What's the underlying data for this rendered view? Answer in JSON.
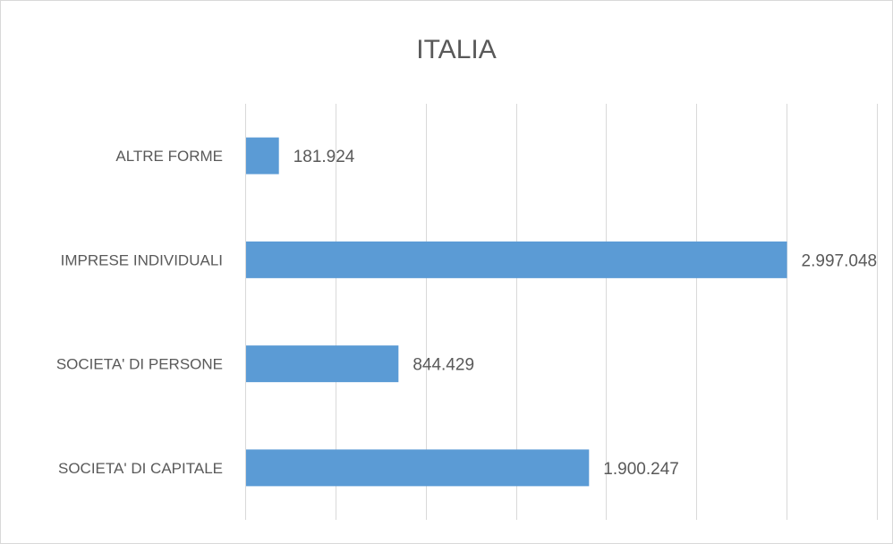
{
  "chart_data": {
    "type": "bar",
    "orientation": "horizontal",
    "title": "ITALIA",
    "xlabel": "",
    "ylabel": "",
    "categories": [
      "ALTRE FORME",
      "IMPRESE INDIVIDUALI",
      "SOCIETA' DI PERSONE",
      "SOCIETA' DI CAPITALE"
    ],
    "values": [
      181924,
      2997048,
      844429,
      1900247
    ],
    "value_labels": [
      "181.924",
      "2.997.048",
      "844.429",
      "1.900.247"
    ],
    "xlim": [
      0,
      3500000
    ],
    "x_gridline_step": 500000,
    "grid": true,
    "x_tick_labels_visible": false,
    "legend": "none",
    "bar_color": "#5b9bd5",
    "grid_color": "#d9d9d9",
    "text_color": "#595959",
    "leader_line_color": "#a6a6a6"
  }
}
